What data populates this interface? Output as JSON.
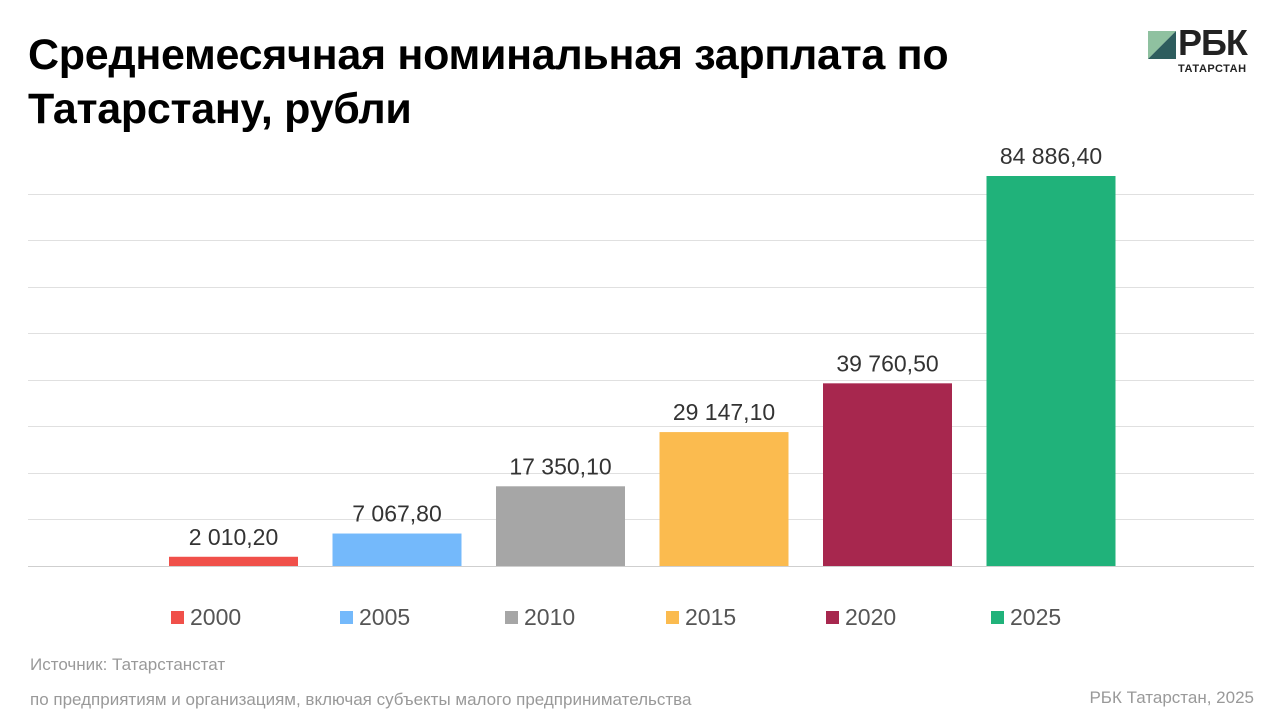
{
  "title": "Среднемесячная номинальная зарплата по Татарстану, рубли",
  "logo": {
    "text": "РБК",
    "subtext": "ТАТАРСТАН"
  },
  "chart_data": {
    "type": "bar",
    "categories": [
      "2000",
      "2005",
      "2010",
      "2015",
      "2020",
      "2025"
    ],
    "values": [
      2010.2,
      7067.8,
      17350.1,
      29147.1,
      39760.5,
      84886.4
    ],
    "data_labels": [
      "2 010,20",
      "7 067,80",
      "17 350,10",
      "29 147,10",
      "39 760,50",
      "84 886,40"
    ],
    "colors": [
      "#f0504a",
      "#74b9fb",
      "#a6a6a6",
      "#fbbb4f",
      "#a7274e",
      "#20b27a"
    ],
    "title": "Среднемесячная номинальная зарплата по Татарстану, рубли",
    "xlabel": "",
    "ylabel": "",
    "ylim": [
      0,
      85000
    ],
    "grid": true,
    "legend": "bottom"
  },
  "footer": {
    "source": "Источник: Татарстанстат",
    "note": "по предприятиям и организациям, включая субъекты малого предпринимательства",
    "credit": "РБК Татарстан, 2025"
  }
}
